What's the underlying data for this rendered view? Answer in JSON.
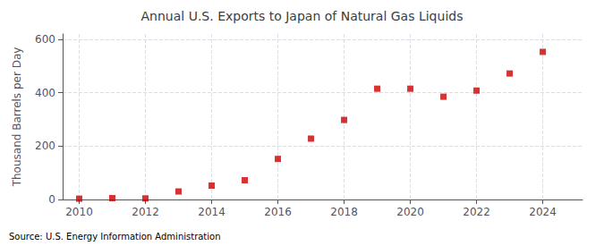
{
  "chart_data": {
    "type": "scatter",
    "title": "Annual U.S. Exports to Japan of Natural Gas Liquids",
    "ylabel": "Thousand Barrels per Day",
    "annotation": "Source: U.S. Energy Information Administration",
    "x": [
      2010,
      2011,
      2012,
      2013,
      2014,
      2015,
      2016,
      2017,
      2018,
      2019,
      2020,
      2021,
      2022,
      2023,
      2024
    ],
    "values": [
      3,
      5,
      4,
      30,
      52,
      72,
      152,
      228,
      298,
      415,
      415,
      385,
      408,
      472,
      553
    ],
    "color": "#cc0000",
    "marker": "square",
    "xlim": [
      2009.5,
      2025.2
    ],
    "ylim": [
      0,
      620
    ],
    "xticks": [
      2010,
      2012,
      2014,
      2016,
      2018,
      2020,
      2022,
      2024
    ],
    "yticks": [
      0,
      200,
      400,
      600
    ],
    "grid": true
  }
}
